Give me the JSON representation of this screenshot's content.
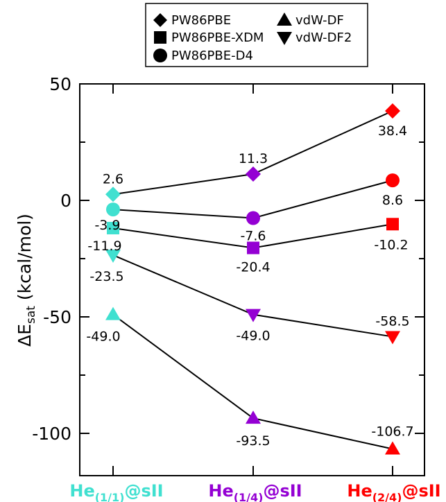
{
  "chart_data": {
    "type": "line",
    "ylabel_main": "ΔE",
    "ylabel_sub": "sat",
    "ylabel_unit": "(kcal/mol)",
    "ylim": [
      -120,
      50
    ],
    "yticks": [
      50,
      0,
      -50,
      -100
    ],
    "ytick_labels": [
      "50",
      "0",
      "-50",
      "-100"
    ],
    "grid": false,
    "legend_position": "top",
    "categories": [
      {
        "base": "He",
        "sub": "(1/1)",
        "suffix": "@sII",
        "color": "#40e0d0"
      },
      {
        "base": "He",
        "sub": "(1/4)",
        "suffix": "@sII",
        "color": "#9400d3"
      },
      {
        "base": "He",
        "sub": "(2/4)",
        "suffix": "@sII",
        "color": "#ff0000"
      }
    ],
    "series": [
      {
        "name": "PW86PBE",
        "marker": "diamond",
        "values": [
          2.6,
          11.3,
          38.4
        ],
        "labels": [
          "2.6",
          "11.3",
          "38.4"
        ]
      },
      {
        "name": "PW86PBE-XDM",
        "marker": "square",
        "values": [
          -11.9,
          -20.4,
          -10.2
        ],
        "labels": [
          "-11.9",
          "-20.4",
          "-10.2"
        ]
      },
      {
        "name": "PW86PBE-D4",
        "marker": "circle",
        "values": [
          -3.9,
          -7.6,
          8.6
        ],
        "labels": [
          "-3.9",
          "-7.6",
          "8.6"
        ]
      },
      {
        "name": "vdW-DF",
        "marker": "triangle-up",
        "values": [
          -49.0,
          -93.5,
          -106.7
        ],
        "labels": [
          "-49.0",
          "-93.5",
          "-106.7"
        ]
      },
      {
        "name": "vdW-DF2",
        "marker": "triangle-down",
        "values": [
          -23.5,
          -49.0,
          -58.5
        ],
        "labels": [
          "-23.5",
          "-49.0",
          "-58.5"
        ]
      }
    ]
  }
}
